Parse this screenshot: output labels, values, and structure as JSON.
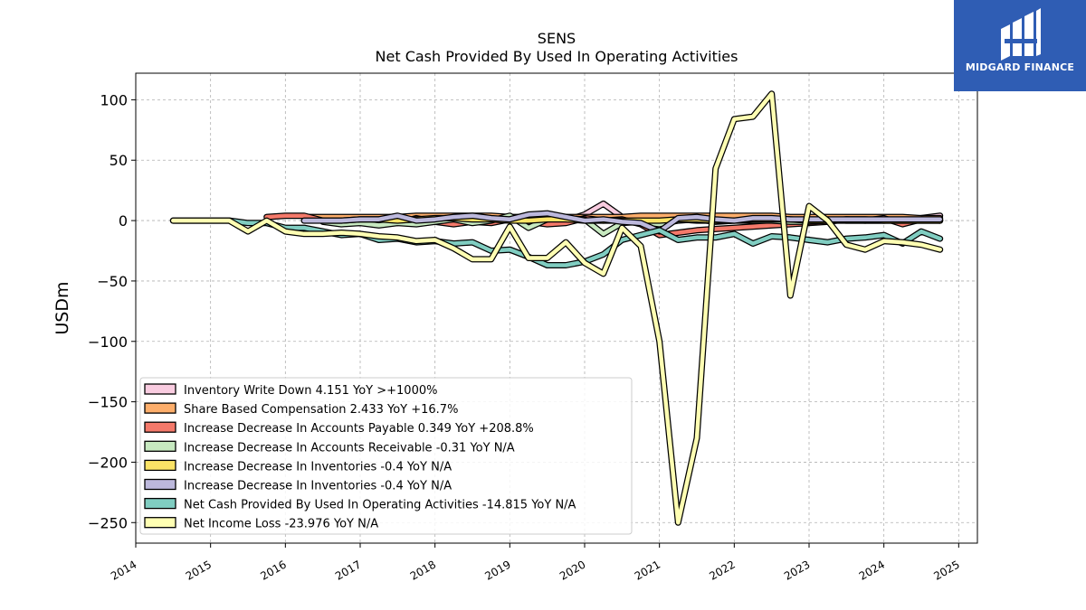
{
  "chart_data": {
    "type": "line",
    "title": "SENS",
    "subtitle": "Net Cash Provided By Used In Operating Activities",
    "ylabel": "USDm",
    "xlabel": "",
    "xlim": [
      2014.0,
      2025.25
    ],
    "ylim": [
      -267,
      122
    ],
    "yticks": [
      100,
      50,
      0,
      -50,
      -100,
      -150,
      -200,
      -250
    ],
    "ytick_labels": [
      "100",
      "50",
      "0",
      "−50",
      "−100",
      "−150",
      "−200",
      "−250"
    ],
    "xticks": [
      2014,
      2015,
      2016,
      2017,
      2018,
      2019,
      2020,
      2021,
      2022,
      2023,
      2024,
      2025
    ],
    "xtick_labels": [
      "2014",
      "2015",
      "2016",
      "2017",
      "2018",
      "2019",
      "2020",
      "2021",
      "2022",
      "2023",
      "2024",
      "2025"
    ],
    "grid": true,
    "legend_position": "lower-left",
    "series": [
      {
        "name": "Inventory Write Down",
        "legend_label": "Inventory Write Down  4.151 YoY >+1000%",
        "color": "#f9cce0",
        "x": [
          2019.0,
          2019.25,
          2019.5,
          2019.75,
          2020.0,
          2020.25,
          2020.5,
          2020.75,
          2021.0,
          2021.25,
          2021.5,
          2021.75,
          2022.0,
          2022.25,
          2022.5,
          2022.75,
          2023.0,
          2023.25,
          2023.5,
          2023.75,
          2024.0,
          2024.25,
          2024.5,
          2024.75
        ],
        "values": [
          0,
          1,
          0,
          0,
          5,
          14,
          3,
          1,
          0,
          1,
          0,
          0,
          1,
          0,
          1,
          0,
          0,
          1,
          0,
          0,
          0,
          1,
          2,
          4
        ]
      },
      {
        "name": "Share Based Compensation",
        "legend_label": "Share Based Compensation  2.433 YoY +16.7%",
        "color": "#fdae6b",
        "x": [
          2016.25,
          2016.5,
          2016.75,
          2017.0,
          2017.25,
          2017.5,
          2017.75,
          2018.0,
          2018.25,
          2018.5,
          2018.75,
          2019.0,
          2019.25,
          2019.5,
          2019.75,
          2020.0,
          2020.25,
          2020.5,
          2020.75,
          2021.0,
          2021.25,
          2021.5,
          2021.75,
          2022.0,
          2022.25,
          2022.5,
          2022.75,
          2023.0,
          2023.25,
          2023.5,
          2023.75,
          2024.0,
          2024.25,
          2024.5,
          2024.75
        ],
        "values": [
          3,
          3,
          3,
          3,
          3,
          3,
          4,
          4,
          4,
          4,
          4,
          3,
          3,
          3,
          3,
          3,
          3,
          3,
          4,
          4,
          4,
          4,
          4,
          4,
          4,
          4,
          3,
          3,
          3,
          3,
          3,
          3,
          3,
          2,
          2
        ]
      },
      {
        "name": "Increase Decrease In Accounts Payable",
        "legend_label": "Increase Decrease In Accounts Payable  0.349 YoY +208.8%",
        "color": "#f4796a",
        "x": [
          2015.75,
          2016.0,
          2016.25,
          2016.5,
          2016.75,
          2017.0,
          2017.25,
          2017.5,
          2017.75,
          2018.0,
          2018.25,
          2018.5,
          2018.75,
          2019.0,
          2019.25,
          2019.5,
          2019.75,
          2020.0,
          2020.25,
          2020.5,
          2020.75,
          2021.0,
          2021.25,
          2021.5,
          2021.75,
          2022.0,
          2022.25,
          2022.5,
          2022.75,
          2023.0,
          2023.25,
          2023.5,
          2023.75,
          2024.0,
          2024.25,
          2024.5,
          2024.75
        ],
        "values": [
          3,
          4,
          4,
          0,
          -2,
          -2,
          -1,
          -2,
          2,
          -1,
          -3,
          -1,
          -2,
          1,
          -1,
          -3,
          -2,
          2,
          0,
          1,
          -3,
          -12,
          -10,
          -8,
          -7,
          -6,
          -5,
          -4,
          -3,
          -2,
          -1,
          1,
          0,
          2,
          -3,
          1,
          0
        ]
      },
      {
        "name": "Increase Decrease In Accounts Receivable",
        "legend_label": "Increase Decrease In Accounts Receivable  -0.31 YoY N/A",
        "color": "#c7e9c0",
        "x": [
          2016.5,
          2016.75,
          2017.0,
          2017.25,
          2017.5,
          2017.75,
          2018.0,
          2018.25,
          2018.5,
          2018.75,
          2019.0,
          2019.25,
          2019.5,
          2019.75,
          2020.0,
          2020.25,
          2020.5,
          2020.75,
          2021.0,
          2021.25,
          2021.5,
          2021.75,
          2022.0,
          2022.25,
          2022.5,
          2022.75,
          2023.0,
          2023.25,
          2023.5,
          2023.75,
          2024.0,
          2024.25,
          2024.5,
          2024.75
        ],
        "values": [
          -1,
          -3,
          -2,
          -4,
          -2,
          -3,
          -1,
          1,
          -2,
          0,
          4,
          -6,
          1,
          2,
          1,
          -11,
          -2,
          -1,
          -3,
          0,
          1,
          -1,
          0,
          0,
          0,
          -1,
          -1,
          0,
          0,
          0,
          0,
          0,
          0,
          0
        ]
      },
      {
        "name": "Increase Decrease In Inventories",
        "legend_label": "Increase Decrease In Inventories  -0.4 YoY N/A",
        "color": "#fbe366",
        "x": [
          2016.5,
          2016.75,
          2017.0,
          2017.25,
          2017.5,
          2017.75,
          2018.0,
          2018.25,
          2018.5,
          2018.75,
          2019.0,
          2019.25,
          2019.5,
          2019.75,
          2020.0,
          2020.25,
          2020.5,
          2020.75,
          2021.0,
          2021.25,
          2021.5,
          2021.75,
          2022.0,
          2022.25,
          2022.5,
          2022.75,
          2023.0,
          2023.25,
          2023.5,
          2023.75,
          2024.0,
          2024.25,
          2024.5,
          2024.75
        ],
        "values": [
          0,
          0,
          1,
          1,
          0,
          1,
          2,
          2,
          1,
          1,
          0,
          0,
          1,
          1,
          0,
          0,
          0,
          0,
          0,
          1,
          1,
          0,
          0,
          1,
          1,
          1,
          0,
          0,
          1,
          1,
          0,
          0,
          0,
          0
        ]
      },
      {
        "name": "Increase Decrease In Inventories",
        "legend_label": "Increase Decrease In Inventories  -0.4 YoY N/A",
        "color": "#bcb8dc",
        "x": [
          2016.25,
          2016.5,
          2016.75,
          2017.0,
          2017.25,
          2017.5,
          2017.75,
          2018.0,
          2018.25,
          2018.5,
          2018.75,
          2019.0,
          2019.25,
          2019.5,
          2019.75,
          2020.0,
          2020.25,
          2020.5,
          2020.75,
          2021.0,
          2021.25,
          2021.5,
          2021.75,
          2022.0,
          2022.25,
          2022.5,
          2022.75,
          2023.0,
          2023.25,
          2023.5,
          2023.75,
          2024.0,
          2024.25,
          2024.5,
          2024.75
        ],
        "values": [
          0,
          0,
          0,
          1,
          1,
          4,
          0,
          1,
          3,
          4,
          2,
          1,
          5,
          6,
          3,
          0,
          1,
          -1,
          -2,
          -9,
          2,
          3,
          1,
          0,
          2,
          2,
          1,
          1,
          1,
          1,
          1,
          1,
          1,
          1,
          1
        ]
      },
      {
        "name": "Net Cash Provided By Used In Operating Activities",
        "legend_label": "Net Cash Provided By Used In Operating Activities  -14.815 YoY N/A",
        "color": "#80cdc1",
        "x": [
          2014.5,
          2014.75,
          2015.0,
          2015.25,
          2015.5,
          2015.75,
          2016.0,
          2016.25,
          2016.5,
          2016.75,
          2017.0,
          2017.25,
          2017.5,
          2017.75,
          2018.0,
          2018.25,
          2018.5,
          2018.75,
          2019.0,
          2019.25,
          2019.5,
          2019.75,
          2020.0,
          2020.25,
          2020.5,
          2020.75,
          2021.0,
          2021.25,
          2021.5,
          2021.75,
          2022.0,
          2022.25,
          2022.5,
          2022.75,
          2023.0,
          2023.25,
          2023.5,
          2023.75,
          2024.0,
          2024.25,
          2024.5,
          2024.75
        ],
        "values": [
          0,
          0,
          0,
          0,
          -2,
          -2,
          -6,
          -6,
          -9,
          -12,
          -11,
          -16,
          -15,
          -18,
          -17,
          -19,
          -18,
          -25,
          -24,
          -30,
          -37,
          -37,
          -34,
          -28,
          -16,
          -12,
          -8,
          -16,
          -14,
          -14,
          -11,
          -19,
          -13,
          -14,
          -16,
          -18,
          -15,
          -14,
          -12,
          -19,
          -9,
          -15
        ]
      },
      {
        "name": "Net Income Loss",
        "legend_label": "Net Income Loss  -23.976 YoY N/A",
        "color": "#ffffb3",
        "x": [
          2014.5,
          2014.75,
          2015.0,
          2015.25,
          2015.5,
          2015.75,
          2016.0,
          2016.25,
          2016.5,
          2016.75,
          2017.0,
          2017.25,
          2017.5,
          2017.75,
          2018.0,
          2018.25,
          2018.5,
          2018.75,
          2019.0,
          2019.25,
          2019.5,
          2019.75,
          2020.0,
          2020.25,
          2020.5,
          2020.75,
          2021.0,
          2021.25,
          2021.5,
          2021.75,
          2022.0,
          2022.25,
          2022.5,
          2022.75,
          2023.0,
          2023.25,
          2023.5,
          2023.75,
          2024.0,
          2024.25,
          2024.5,
          2024.75
        ],
        "values": [
          0,
          0,
          0,
          0,
          -9,
          0,
          -9,
          -11,
          -11,
          -10,
          -11,
          -13,
          -14,
          -17,
          -16,
          -23,
          -32,
          -32,
          -5,
          -31,
          -31,
          -18,
          -35,
          -44,
          -6,
          -21,
          -100,
          -250,
          -180,
          43,
          84,
          86,
          105,
          -62,
          12,
          0,
          -20,
          -24,
          -17,
          -18,
          -20,
          -24
        ]
      }
    ]
  },
  "logo": {
    "text": "MIDGARD FINANCE"
  }
}
